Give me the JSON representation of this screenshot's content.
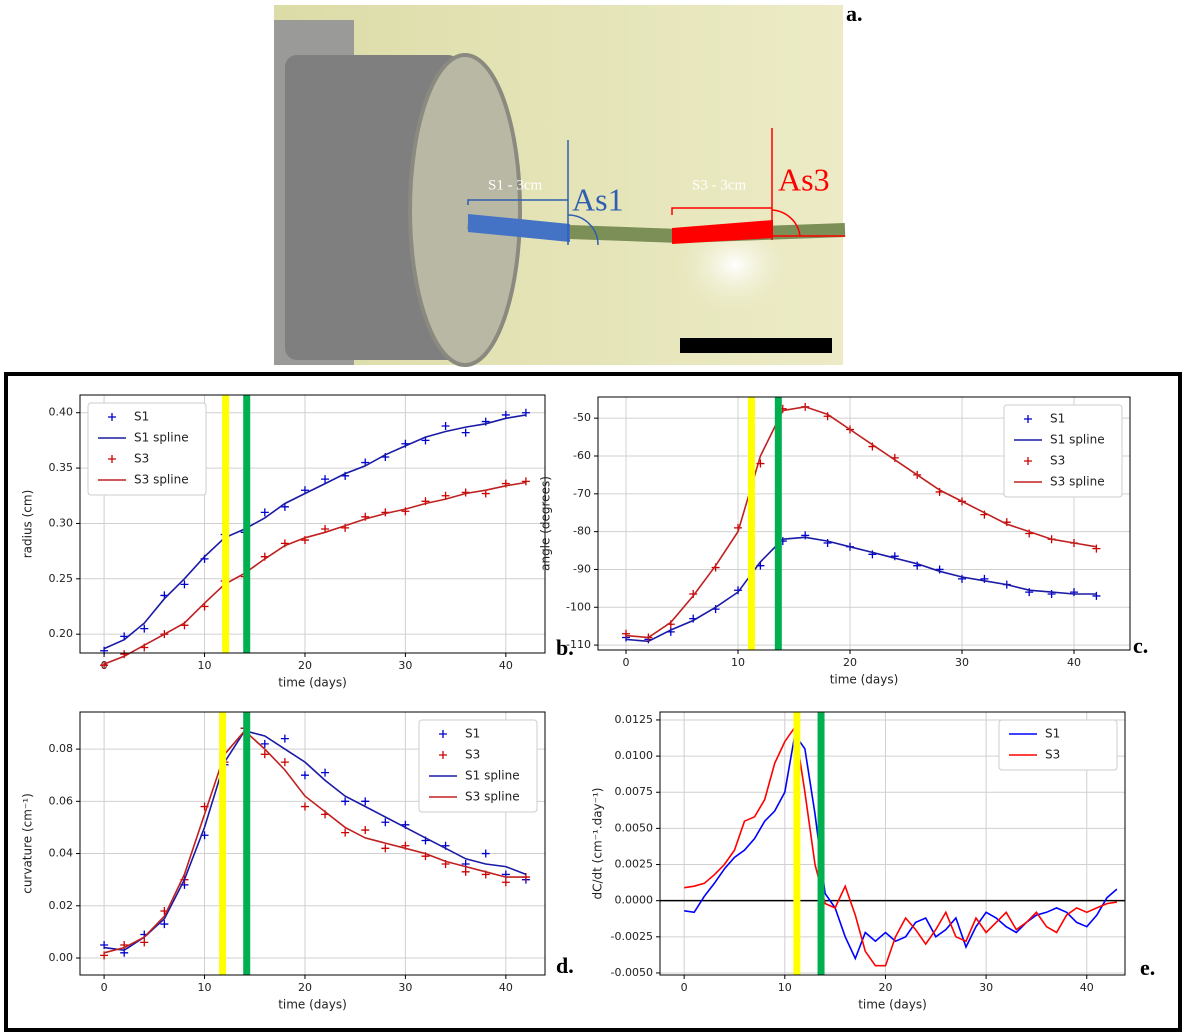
{
  "photo": {
    "label": "a.",
    "annotations": [
      "S1 - 3cm",
      "As1",
      "S3 - 3cm",
      "As3"
    ]
  },
  "chart_data": [
    {
      "type": "line",
      "panel_label": "b.",
      "xlabel": "time (days)",
      "ylabel": "radius (cm)",
      "legend": "upper left",
      "grid": true,
      "x": [
        0,
        2,
        4,
        6,
        8,
        10,
        12,
        14,
        16,
        18,
        20,
        22,
        24,
        26,
        28,
        30,
        32,
        34,
        36,
        38,
        40,
        42
      ],
      "xlim": [
        -2.4,
        43.9
      ],
      "xticks": [
        0,
        10,
        20,
        30,
        40
      ],
      "ylim": [
        0.183,
        0.416
      ],
      "yticks": [
        {
          "value": 0.2,
          "label": "0.20"
        },
        0.25,
        {
          "value": 0.3,
          "label": "0.30"
        },
        0.35,
        {
          "value": 0.4,
          "label": "0.40"
        }
      ],
      "vlines": [
        {
          "x": 12.1,
          "color": "#ffff00"
        },
        {
          "x": 14.2,
          "color": "#00b050"
        }
      ],
      "series": [
        {
          "name": "S1",
          "color": "#0000cc",
          "style": "markers",
          "values": [
            0.185,
            0.198,
            0.205,
            0.235,
            0.245,
            0.268,
            0.29,
            0.292,
            0.31,
            0.315,
            0.33,
            0.34,
            0.343,
            0.355,
            0.36,
            0.372,
            0.375,
            0.388,
            0.382,
            0.392,
            0.398,
            0.4
          ]
        },
        {
          "name": "S1 spline",
          "color": "#1a1aa6",
          "style": "line",
          "values": [
            0.187,
            0.195,
            0.21,
            0.232,
            0.25,
            0.27,
            0.287,
            0.295,
            0.305,
            0.318,
            0.327,
            0.336,
            0.345,
            0.352,
            0.362,
            0.37,
            0.378,
            0.383,
            0.387,
            0.39,
            0.395,
            0.398
          ]
        },
        {
          "name": "S3",
          "color": "#cc0000",
          "style": "markers",
          "values": [
            0.172,
            0.182,
            0.188,
            0.2,
            0.208,
            0.225,
            0.248,
            0.252,
            0.27,
            0.282,
            0.285,
            0.295,
            0.296,
            0.306,
            0.31,
            0.311,
            0.32,
            0.325,
            0.328,
            0.327,
            0.336,
            0.338
          ]
        },
        {
          "name": "S3 spline",
          "color": "#c02020",
          "style": "line",
          "values": [
            0.173,
            0.18,
            0.19,
            0.2,
            0.21,
            0.228,
            0.245,
            0.255,
            0.268,
            0.28,
            0.287,
            0.292,
            0.298,
            0.304,
            0.309,
            0.313,
            0.318,
            0.322,
            0.327,
            0.33,
            0.334,
            0.337
          ]
        }
      ]
    },
    {
      "type": "line",
      "panel_label": "c.",
      "xlabel": "time (days)",
      "ylabel": "angle (degrees)",
      "legend": "upper right",
      "grid": true,
      "x": [
        0,
        2,
        4,
        6,
        8,
        10,
        12,
        14,
        16,
        18,
        20,
        22,
        24,
        26,
        28,
        30,
        32,
        34,
        36,
        38,
        40,
        42
      ],
      "xlim": [
        -2.5,
        45
      ],
      "xticks": [
        0,
        10,
        20,
        30,
        40
      ],
      "ylim": [
        -111.3,
        -44.4
      ],
      "yticks": [
        -110,
        -100,
        -90,
        -80,
        -70,
        -60,
        -50
      ],
      "vlines": [
        {
          "x": 11.2,
          "color": "#ffff00"
        },
        {
          "x": 13.6,
          "color": "#00b050"
        }
      ],
      "series": [
        {
          "name": "S1",
          "color": "#0000cc",
          "style": "markers",
          "values": [
            -108,
            -108.5,
            -106.5,
            -103,
            -100.5,
            -95.5,
            -89,
            -82.5,
            -81,
            -83,
            -84,
            -86,
            -86.5,
            -89,
            -90,
            -92.5,
            -92.5,
            -94,
            -96,
            -96.5,
            -96,
            -97
          ]
        },
        {
          "name": "S1 spline",
          "color": "#1a1aa6",
          "style": "line",
          "values": [
            -108.5,
            -109,
            -106,
            -103.5,
            -100,
            -96,
            -88,
            -82,
            -81.5,
            -82.5,
            -84,
            -85.5,
            -87,
            -88.5,
            -90.5,
            -92,
            -93,
            -94,
            -95.5,
            -96,
            -96.5,
            -96.5
          ]
        },
        {
          "name": "S3",
          "color": "#cc0000",
          "style": "markers",
          "values": [
            -107,
            -108,
            -104.5,
            -96.5,
            -89.5,
            -79,
            -62,
            -47.5,
            -47,
            -49.5,
            -53,
            -57.5,
            -60.5,
            -65,
            -69.5,
            -72,
            -75.5,
            -77.5,
            -80.5,
            -82,
            -83,
            -84.5
          ]
        },
        {
          "name": "S3 spline",
          "color": "#c02020",
          "style": "line",
          "values": [
            -107.5,
            -108,
            -104,
            -97,
            -89,
            -80,
            -60,
            -48,
            -47,
            -49,
            -53,
            -57,
            -61,
            -65,
            -69,
            -72,
            -75,
            -78,
            -80,
            -82,
            -83,
            -84
          ]
        }
      ]
    },
    {
      "type": "line",
      "panel_label": "d.",
      "xlabel": "time (days)",
      "ylabel": "curvature (cm⁻¹)",
      "legend": "upper right",
      "grid": true,
      "x": [
        0,
        2,
        4,
        6,
        8,
        10,
        12,
        14,
        16,
        18,
        20,
        22,
        24,
        26,
        28,
        30,
        32,
        34,
        36,
        38,
        40,
        42
      ],
      "xlim": [
        -2.4,
        43.9
      ],
      "xticks": [
        0,
        10,
        20,
        30,
        40
      ],
      "ylim": [
        -0.0065,
        0.0942
      ],
      "yticks": [
        {
          "value": 0,
          "label": "0.00"
        },
        0.02,
        0.04,
        0.06,
        0.08
      ],
      "vlines": [
        {
          "x": 11.8,
          "color": "#ffff00"
        },
        {
          "x": 14.2,
          "color": "#00b050"
        }
      ],
      "series": [
        {
          "name": "S1",
          "color": "#0000cc",
          "style": "markers",
          "values": [
            0.005,
            0.002,
            0.009,
            0.013,
            0.028,
            0.047,
            0.074,
            0.088,
            0.082,
            0.084,
            0.07,
            0.071,
            0.06,
            0.06,
            0.052,
            0.051,
            0.045,
            0.043,
            0.036,
            0.04,
            0.032,
            0.03
          ]
        },
        {
          "name": "S3",
          "color": "#cc0000",
          "style": "markers",
          "values": [
            0.001,
            0.005,
            0.006,
            0.018,
            0.03,
            0.058,
            0.075,
            0.088,
            0.078,
            0.075,
            0.058,
            0.055,
            0.048,
            0.049,
            0.042,
            0.043,
            0.039,
            0.036,
            0.033,
            0.032,
            0.029,
            0.031
          ]
        },
        {
          "name": "S1 spline",
          "color": "#1a1aa6",
          "style": "line",
          "values": [
            0.004,
            0.003,
            0.008,
            0.015,
            0.03,
            0.05,
            0.075,
            0.087,
            0.085,
            0.08,
            0.075,
            0.068,
            0.062,
            0.058,
            0.054,
            0.05,
            0.046,
            0.042,
            0.038,
            0.036,
            0.035,
            0.032
          ]
        },
        {
          "name": "S3 spline",
          "color": "#c02020",
          "style": "line",
          "values": [
            0.002,
            0.004,
            0.008,
            0.016,
            0.032,
            0.055,
            0.078,
            0.087,
            0.08,
            0.072,
            0.062,
            0.056,
            0.05,
            0.046,
            0.044,
            0.042,
            0.04,
            0.037,
            0.035,
            0.033,
            0.031,
            0.031
          ]
        }
      ]
    },
    {
      "type": "line",
      "panel_label": "e.",
      "xlabel": "time (days)",
      "ylabel": "dC/dt (cm⁻¹.day⁻¹)",
      "legend": "upper right",
      "grid": true,
      "x": [
        0,
        1,
        2,
        3,
        4,
        5,
        6,
        7,
        8,
        9,
        10,
        11,
        12,
        13,
        14,
        15,
        16,
        17,
        18,
        19,
        20,
        21,
        22,
        23,
        24,
        25,
        26,
        27,
        28,
        29,
        30,
        31,
        32,
        33,
        34,
        35,
        36,
        37,
        38,
        39,
        40,
        41,
        42,
        43
      ],
      "xlim": [
        -2.4,
        43.8
      ],
      "xticks": [
        0,
        10,
        20,
        30,
        40
      ],
      "ylim": [
        -0.00514,
        0.01305
      ],
      "yticks": [
        {
          "value": -0.005,
          "label": "-0.0050"
        },
        -0.0025,
        {
          "value": 0,
          "label": "0.0000"
        },
        0.0025,
        {
          "value": 0.005,
          "label": "0.0050"
        },
        0.0075,
        {
          "value": 0.01,
          "label": "0.0100"
        },
        0.0125
      ],
      "hline": 0,
      "vlines": [
        {
          "x": 11.2,
          "color": "#ffff00"
        },
        {
          "x": 13.6,
          "color": "#00b050"
        }
      ],
      "series": [
        {
          "name": "S1",
          "color": "#0000ff",
          "style": "line",
          "values": [
            -0.0007,
            -0.0008,
            0.0003,
            0.0012,
            0.0022,
            0.003,
            0.0035,
            0.0043,
            0.0055,
            0.0062,
            0.0075,
            0.0115,
            0.0105,
            0.006,
            0.0005,
            -0.0005,
            -0.0025,
            -0.004,
            -0.0022,
            -0.0028,
            -0.0022,
            -0.0028,
            -0.0025,
            -0.0015,
            -0.0012,
            -0.0025,
            -0.002,
            -0.0012,
            -0.0032,
            -0.0018,
            -0.0008,
            -0.0012,
            -0.0018,
            -0.0022,
            -0.0015,
            -0.001,
            -0.0008,
            -0.0005,
            -0.0008,
            -0.0015,
            -0.0018,
            -0.001,
            0.0002,
            0.0008
          ]
        },
        {
          "name": "S3",
          "color": "#ff0000",
          "style": "line",
          "values": [
            0.0009,
            0.001,
            0.0012,
            0.0018,
            0.0025,
            0.0035,
            0.0055,
            0.0058,
            0.007,
            0.0095,
            0.011,
            0.012,
            0.0075,
            0.0025,
            -0.0002,
            -0.0005,
            0.001,
            -0.001,
            -0.0035,
            -0.0045,
            -0.0045,
            -0.0025,
            -0.0012,
            -0.002,
            -0.003,
            -0.002,
            -0.0008,
            -0.0025,
            -0.0028,
            -0.0012,
            -0.0022,
            -0.0015,
            -0.0008,
            -0.002,
            -0.0015,
            -0.0008,
            -0.0018,
            -0.0022,
            -0.001,
            -0.0005,
            -0.0008,
            -0.0005,
            -0.0002,
            -0.0001
          ]
        }
      ]
    }
  ]
}
